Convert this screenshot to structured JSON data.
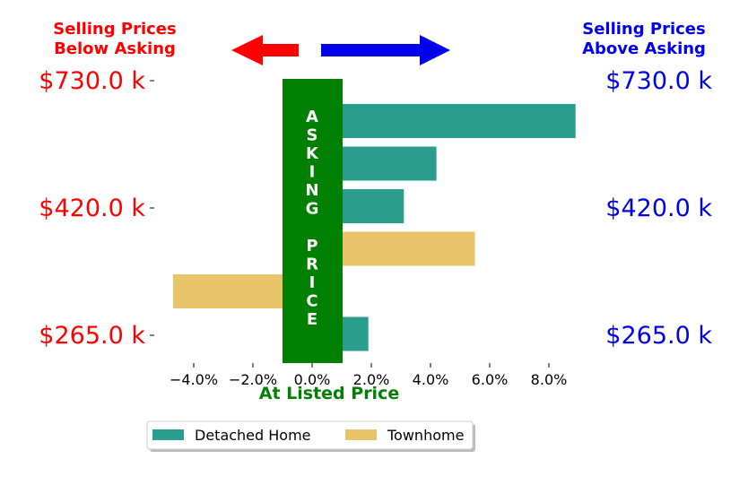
{
  "header": {
    "left_line1": "Selling Prices",
    "left_line2": "Below Asking",
    "right_line1": "Selling Prices",
    "right_line2": "Above Asking"
  },
  "price_labels_left": [
    "$730.0 k",
    "$420.0 k",
    "$265.0 k"
  ],
  "price_labels_right": [
    "$730.0 k",
    "$420.0 k",
    "$265.0 k"
  ],
  "center_band": {
    "word1": [
      "A",
      "S",
      "K",
      "I",
      "N",
      "G"
    ],
    "word2": [
      "P",
      "R",
      "I",
      "C",
      "E"
    ]
  },
  "colors": {
    "below": "#ff0000",
    "above": "#0000ee",
    "asking_band": "#008000",
    "detached": "#2a9d8f",
    "townhome": "#e9c46a"
  },
  "chart_data": {
    "type": "bar",
    "orientation": "horizontal",
    "xlabel": "At Listed Price",
    "xlim": [
      -5.2,
      9.8
    ],
    "xticks": [
      -4,
      -2,
      0,
      2,
      4,
      6,
      8
    ],
    "xtick_labels": [
      "−4.0%",
      "−2.0%",
      "0.0%",
      "2.0%",
      "4.0%",
      "6.0%",
      "8.0%"
    ],
    "bars": [
      {
        "series": "Detached Home",
        "value": 8.9
      },
      {
        "series": "Detached Home",
        "value": 4.2
      },
      {
        "series": "Detached Home",
        "value": 3.1
      },
      {
        "series": "Townhome",
        "value": 5.5
      },
      {
        "series": "Townhome",
        "value": -4.7
      },
      {
        "series": "Detached Home",
        "value": 1.9
      }
    ],
    "legend": {
      "placement": "bottom-center",
      "entries": [
        "Detached Home",
        "Townhome"
      ]
    }
  }
}
